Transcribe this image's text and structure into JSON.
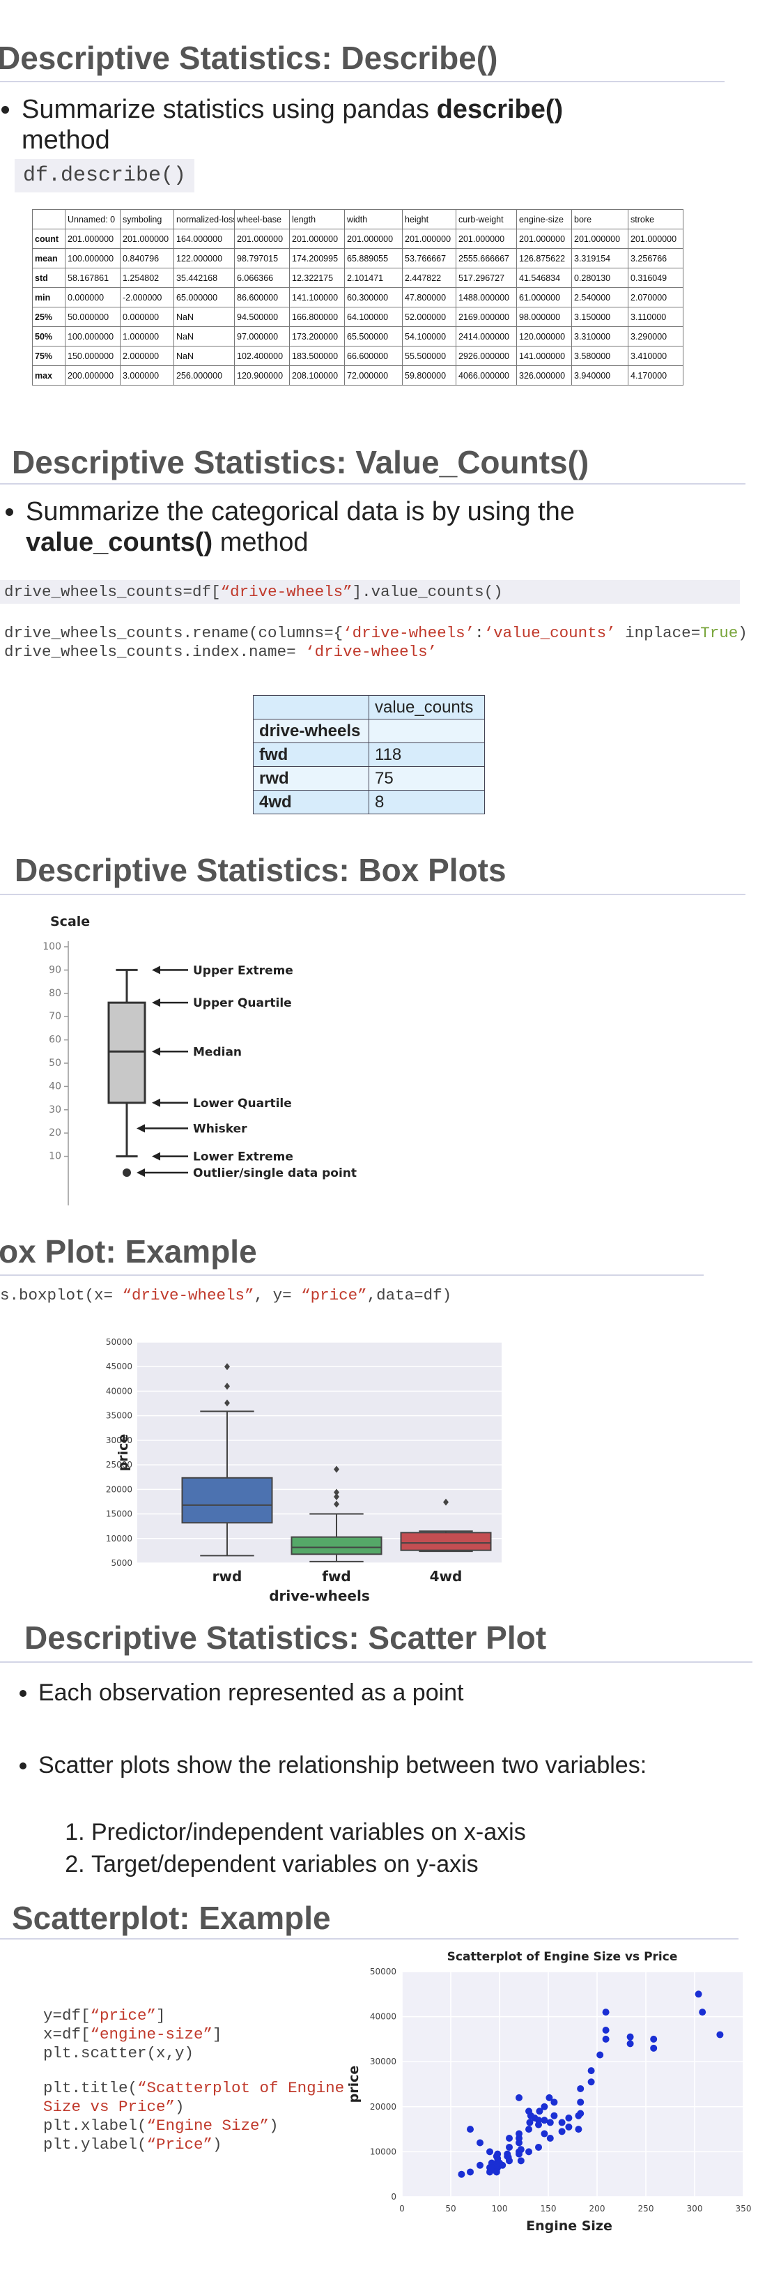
{
  "describe": {
    "title": "Descriptive Statistics: Describe()",
    "bullet": [
      {
        "text": "Summarize statistics using pandas "
      },
      {
        "text": "describe()",
        "bold": true
      },
      {
        "text": " method"
      }
    ],
    "code": "df.describe()",
    "table": {
      "header": [
        null,
        "Unnamed: 0",
        "symboling",
        "normalized-losses",
        "wheel-base",
        "length",
        "width",
        "height",
        "curb-weight",
        "engine-size",
        "bore",
        "stroke"
      ],
      "rows": [
        [
          "count",
          "201.000000",
          "201.000000",
          "164.000000",
          "201.000000",
          "201.000000",
          "201.000000",
          "201.000000",
          "201.000000",
          "201.000000",
          "201.000000",
          "201.000000"
        ],
        [
          "mean",
          "100.000000",
          "0.840796",
          "122.000000",
          "98.797015",
          "174.200995",
          "65.889055",
          "53.766667",
          "2555.666667",
          "126.875622",
          "3.319154",
          "3.256766"
        ],
        [
          "std",
          "58.167861",
          "1.254802",
          "35.442168",
          "6.066366",
          "12.322175",
          "2.101471",
          "2.447822",
          "517.296727",
          "41.546834",
          "0.280130",
          "0.316049"
        ],
        [
          "min",
          "0.000000",
          "-2.000000",
          "65.000000",
          "86.600000",
          "141.100000",
          "60.300000",
          "47.800000",
          "1488.000000",
          "61.000000",
          "2.540000",
          "2.070000"
        ],
        [
          "25%",
          "50.000000",
          "0.000000",
          "NaN",
          "94.500000",
          "166.800000",
          "64.100000",
          "52.000000",
          "2169.000000",
          "98.000000",
          "3.150000",
          "3.110000"
        ],
        [
          "50%",
          "100.000000",
          "1.000000",
          "NaN",
          "97.000000",
          "173.200000",
          "65.500000",
          "54.100000",
          "2414.000000",
          "120.000000",
          "3.310000",
          "3.290000"
        ],
        [
          "75%",
          "150.000000",
          "2.000000",
          "NaN",
          "102.400000",
          "183.500000",
          "66.600000",
          "55.500000",
          "2926.000000",
          "141.000000",
          "3.580000",
          "3.410000"
        ],
        [
          "max",
          "200.000000",
          "3.000000",
          "256.000000",
          "120.900000",
          "208.100000",
          "72.000000",
          "59.800000",
          "4066.000000",
          "326.000000",
          "3.940000",
          "4.170000"
        ]
      ]
    }
  },
  "value_counts": {
    "title": "Descriptive Statistics: Value_Counts()",
    "bullet": [
      {
        "text": "Summarize the categorical data is by using the "
      },
      {
        "text": "value_counts()",
        "bold": true
      },
      {
        "text": " method"
      }
    ],
    "code": [
      [
        {
          "text": "drive_wheels_counts=df["
        },
        {
          "text": "“drive-wheels”",
          "color": "#c0392b"
        },
        {
          "text": "].value_counts()"
        }
      ],
      [
        {
          "text": "drive_wheels_counts.rename(columns={"
        },
        {
          "text": "‘drive-wheels’",
          "color": "#c0392b"
        },
        {
          "text": ":"
        },
        {
          "text": "‘value_counts’",
          "color": "#c0392b"
        },
        {
          "text": " inplace="
        },
        {
          "text": "True",
          "color": "#7aa63d"
        },
        {
          "text": ")"
        }
      ],
      [
        {
          "text": "drive_wheels_counts.index.name= "
        },
        {
          "text": "‘drive-wheels’",
          "color": "#c0392b"
        }
      ]
    ],
    "table": {
      "header": [
        null,
        "value_counts"
      ],
      "rows": [
        [
          "drive-wheels",
          null
        ],
        [
          "fwd",
          118
        ],
        [
          "rwd",
          75
        ],
        [
          "4wd",
          8
        ]
      ]
    }
  },
  "box_plots": {
    "title": "Descriptive Statistics: Box Plots"
  },
  "box_example": {
    "title": "ox Plot: Example",
    "code": [
      {
        "text": "s.boxplot(x= "
      },
      {
        "text": "“drive-wheels”",
        "color": "#c0392b"
      },
      {
        "text": ", y= "
      },
      {
        "text": "“price”",
        "color": "#c0392b"
      },
      {
        "text": ",data=df)"
      }
    ]
  },
  "scatter_plot": {
    "title": "Descriptive Statistics: Scatter Plot",
    "bullets": [
      "Each observation represented as a point",
      "Scatter plots show the relationship between two variables:"
    ],
    "steps": [
      "Predictor/independent variables on x-axis",
      "Target/dependent variables on y-axis"
    ]
  },
  "scatter_example": {
    "title": "Scatterplot: Example",
    "code": [
      [
        {
          "text": "y=df["
        },
        {
          "text": "“price”",
          "color": "#c0392b"
        },
        {
          "text": "]"
        }
      ],
      [
        {
          "text": "x=df["
        },
        {
          "text": "“engine-size”",
          "color": "#c0392b"
        },
        {
          "text": "]"
        }
      ],
      [
        {
          "text": "plt.scatter(x,y)"
        }
      ],
      [
        {
          "text": "plt.title("
        },
        {
          "text": "“Scatterplot of Engine",
          "color": "#c0392b"
        }
      ],
      [
        {
          "text": "Size vs Price”",
          "color": "#c0392b"
        },
        {
          "text": ")"
        }
      ],
      [
        {
          "text": "plt.xlabel("
        },
        {
          "text": "“Engine Size”",
          "color": "#c0392b"
        },
        {
          "text": ")"
        }
      ],
      [
        {
          "text": "plt.ylabel("
        },
        {
          "text": "“Price”",
          "color": "#c0392b"
        },
        {
          "text": ")"
        }
      ]
    ]
  },
  "chart_data": [
    {
      "type": "box",
      "y_label": "Scale",
      "ylim": [
        0,
        100
      ],
      "yticks": [
        10,
        20,
        30,
        40,
        50,
        60,
        70,
        80,
        90,
        100
      ],
      "colors": [
        "#c8c8c8"
      ],
      "boxes": [
        {
          "low": 10,
          "q1": 33,
          "median": 55,
          "q3": 76,
          "high": 90,
          "outliers": [
            3
          ]
        }
      ],
      "annotations": [
        {
          "text": "Upper Extreme",
          "value": 90
        },
        {
          "text": "Upper Quartile",
          "value": 76
        },
        {
          "text": "Median",
          "value": 55
        },
        {
          "text": "Lower Quartile",
          "value": 33
        },
        {
          "text": "Whisker",
          "value": 22
        },
        {
          "text": "Lower Extreme",
          "value": 10
        },
        {
          "text": "Outlier/single data point",
          "value": 3
        }
      ]
    },
    {
      "type": "box",
      "x_label": "drive-wheels",
      "y_label": "price",
      "categories": [
        "rwd",
        "fwd",
        "4wd"
      ],
      "colors": [
        "#4c72b0",
        "#55a868",
        "#c44e52"
      ],
      "ylim": [
        5000,
        50000
      ],
      "yticks": [
        5000,
        10000,
        15000,
        20000,
        25000,
        30000,
        35000,
        40000,
        45000,
        50000
      ],
      "grid": true,
      "boxes": [
        {
          "low": 6500,
          "q1": 13200,
          "median": 16800,
          "q3": 22350,
          "high": 35900,
          "outliers": [
            37600,
            41000,
            45000
          ]
        },
        {
          "low": 5300,
          "q1": 6800,
          "median": 8200,
          "q3": 10300,
          "high": 15000,
          "outliers": [
            17000,
            18500,
            19400,
            24100
          ]
        },
        {
          "low": 7400,
          "q1": 7600,
          "median": 9100,
          "q3": 11200,
          "high": 11500,
          "outliers": [
            17400
          ]
        }
      ]
    },
    {
      "type": "scatter",
      "title": "Scatterplot of Engine Size vs Price",
      "x_label": "Engine Size",
      "y_label": "price",
      "color": "#1a2fd4",
      "xlim": [
        0,
        350
      ],
      "ylim": [
        0,
        50000
      ],
      "xticks": [
        0,
        50,
        100,
        150,
        200,
        250,
        300,
        350
      ],
      "yticks": [
        0,
        10000,
        20000,
        30000,
        40000,
        50000
      ],
      "grid": true,
      "x": [
        61,
        70,
        80,
        90,
        92,
        92,
        97,
        97,
        98,
        98,
        90,
        92,
        97,
        98,
        100,
        103,
        108,
        108,
        110,
        110,
        109,
        120,
        120,
        120,
        120,
        122,
        122,
        130,
        131,
        132,
        136,
        140,
        141,
        146,
        146,
        152,
        156,
        164,
        164,
        171,
        181,
        181,
        183,
        183,
        194,
        194,
        203,
        209,
        209,
        209,
        234,
        234,
        258,
        258,
        304,
        308,
        326,
        70,
        80,
        90,
        110,
        120,
        130,
        140,
        152,
        156,
        171,
        183,
        151,
        146,
        120,
        130,
        140,
        98,
        97
      ],
      "y": [
        5000,
        5500,
        7000,
        6500,
        6000,
        7500,
        6000,
        7500,
        8500,
        7000,
        5500,
        6500,
        9000,
        6500,
        7500,
        7000,
        9000,
        9500,
        8000,
        11000,
        8800,
        10000,
        9500,
        12000,
        13000,
        8000,
        10500,
        15000,
        16500,
        18000,
        17500,
        16000,
        19000,
        17000,
        14000,
        16500,
        18000,
        14500,
        16500,
        15500,
        18000,
        15000,
        21000,
        24000,
        25500,
        28000,
        31500,
        35000,
        37000,
        41000,
        34000,
        35500,
        33000,
        35000,
        45000,
        41000,
        36000,
        15000,
        12000,
        10000,
        13000,
        14000,
        19000,
        17000,
        13000,
        21000,
        17500,
        18500,
        22000,
        20000,
        22000,
        10000,
        11000,
        9500,
        5500
      ]
    }
  ]
}
